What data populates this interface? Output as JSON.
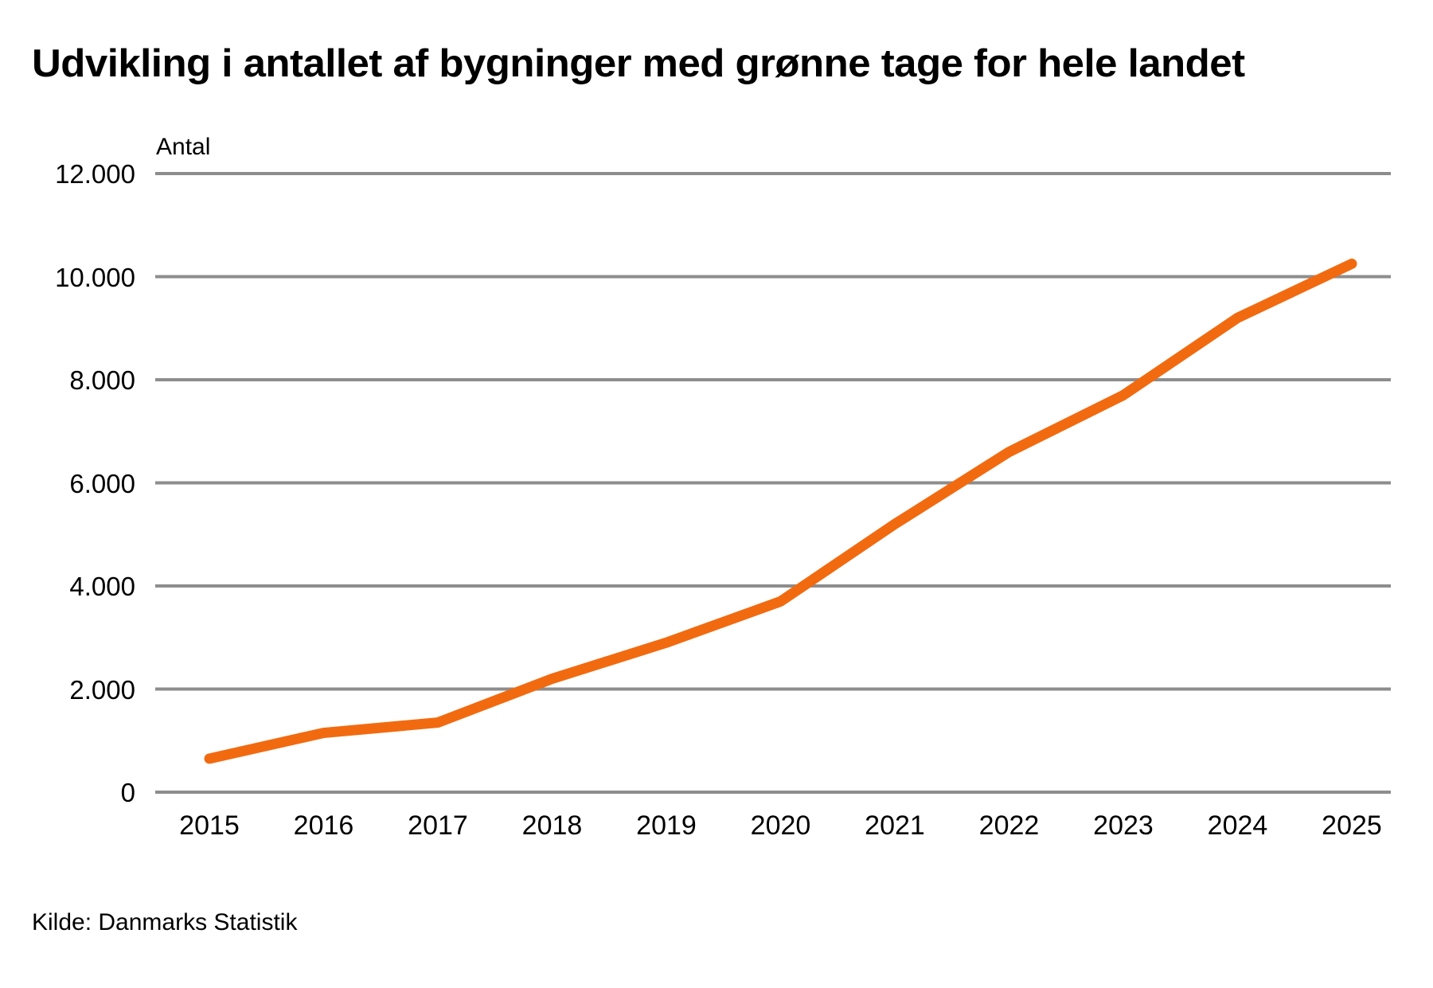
{
  "page": {
    "title": "Udvikling i antallet af bygninger med grønne tage for hele landet",
    "source": "Kilde: Danmarks Statistik"
  },
  "chart_data": {
    "type": "line",
    "title": "Udvikling i antallet af bygninger med grønne tage for hele landet",
    "xlabel": "",
    "ylabel": "Antal",
    "categories": [
      "2015",
      "2016",
      "2017",
      "2018",
      "2019",
      "2020",
      "2021",
      "2022",
      "2023",
      "2024",
      "2025"
    ],
    "values": [
      650,
      1150,
      1350,
      2200,
      2900,
      3700,
      5200,
      6600,
      7700,
      9200,
      10250
    ],
    "ylim": [
      0,
      12000
    ],
    "y_ticks": [
      0,
      2000,
      4000,
      6000,
      8000,
      10000,
      12000
    ],
    "y_tick_labels": [
      "0",
      "2.000",
      "4.000",
      "6.000",
      "8.000",
      "10.000",
      "12.000"
    ],
    "grid": true,
    "legend": false,
    "line_color": "#F26A10",
    "gridline_color": "#8D8D8D",
    "text_color": "#000000"
  }
}
